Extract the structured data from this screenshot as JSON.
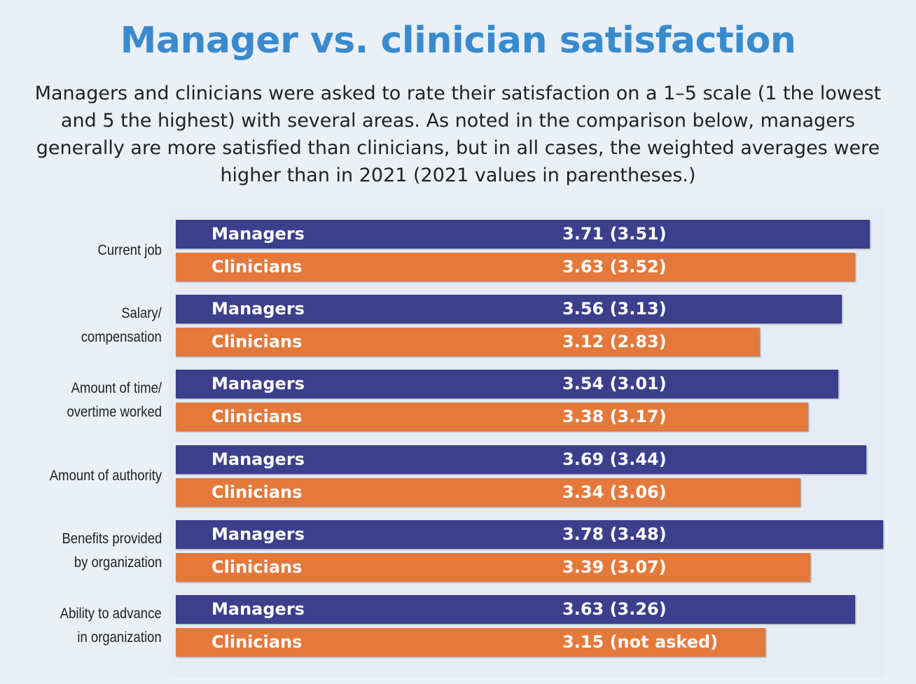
{
  "title": "Manager vs. clinician satisfaction",
  "subtitle": "Managers and clinicians were asked to rate their satisfaction on a 1–5 scale (1 the lowest and 5 the highest) with several areas. As noted in the comparison below, managers generally are more satisfied than clinicians, but in all cases, the weighted averages were higher than in 2021 (2021 values in parentheses.)",
  "colors": {
    "managers": "#3b3f8c",
    "clinicians": "#e4793b",
    "title": "#3a8bcd"
  },
  "chart_data": {
    "type": "bar",
    "orientation": "horizontal",
    "categories": [
      [
        "Current job"
      ],
      [
        "Salary/",
        "compensation"
      ],
      [
        "Amount of time/",
        "overtime worked"
      ],
      [
        "Amount of authority"
      ],
      [
        "Benefits provided",
        "by organization"
      ],
      [
        "Ability to advance",
        "in organization"
      ]
    ],
    "series": [
      {
        "name": "Managers",
        "values": [
          3.71,
          3.56,
          3.54,
          3.69,
          3.78,
          3.63
        ],
        "prior_values": [
          3.51,
          3.13,
          3.01,
          3.44,
          3.48,
          3.26
        ],
        "labels": [
          "3.71 (3.51)",
          "3.56 (3.13)",
          "3.54 (3.01)",
          "3.69 (3.44)",
          "3.78 (3.48)",
          "3.63 (3.26)"
        ]
      },
      {
        "name": "Clinicians",
        "values": [
          3.63,
          3.12,
          3.38,
          3.34,
          3.39,
          3.15
        ],
        "prior_values": [
          3.52,
          2.83,
          3.17,
          3.06,
          3.07,
          null
        ],
        "labels": [
          "3.63 (3.52)",
          "3.12 (2.83)",
          "3.38 (3.17)",
          "3.34 (3.06)",
          "3.39 (3.07)",
          "3.15 (not asked)"
        ]
      }
    ],
    "grid": false,
    "legend": "none"
  }
}
